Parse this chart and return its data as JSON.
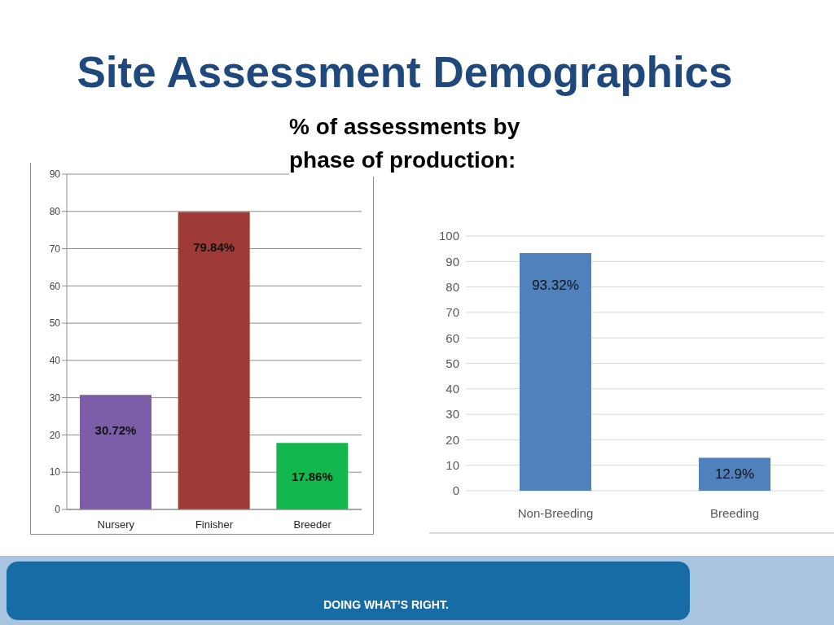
{
  "chart_data": [
    {
      "type": "bar",
      "title": "Site Assessment Demographics",
      "subtitle": "% of assessments by phase of production:",
      "annotations": [
        "DOING WHAT’S RIGHT."
      ],
      "categories": [
        "Nursery",
        "Finisher",
        "Breeder"
      ],
      "values": [
        30.72,
        79.84,
        17.86
      ],
      "colors": [
        "#7b5ea7",
        "#9e3b37",
        "#12b84e"
      ],
      "value_labels": [
        "30.72%",
        "79.84%",
        "17.86%"
      ],
      "ylim": [
        0,
        90
      ],
      "yticks": [
        0,
        10,
        20,
        30,
        40,
        50,
        60,
        70,
        80,
        90
      ],
      "grid": "y"
    },
    {
      "type": "bar",
      "categories": [
        "Non-Breeding",
        "Breeding"
      ],
      "values": [
        93.32,
        12.9
      ],
      "color": "#4f81bd",
      "value_labels": [
        "93.32%",
        "12.9%"
      ],
      "ylim": [
        0,
        100
      ],
      "yticks": [
        0,
        10,
        20,
        30,
        40,
        50,
        60,
        70,
        80,
        90,
        100
      ],
      "grid": "y"
    }
  ]
}
